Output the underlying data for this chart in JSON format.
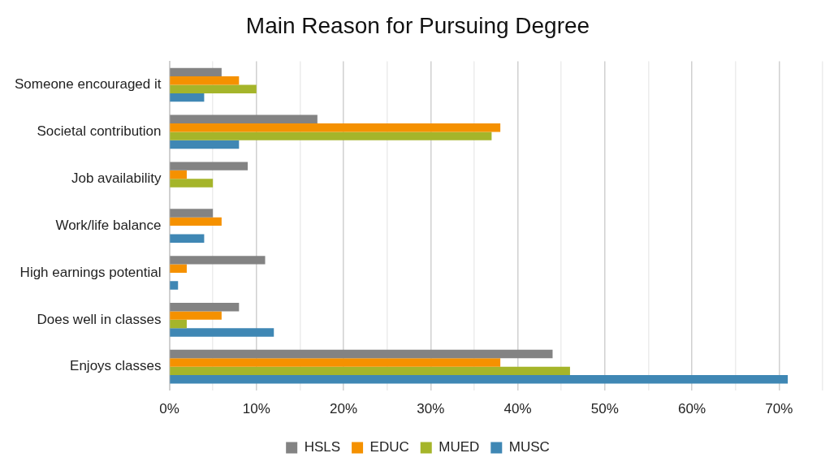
{
  "chart_data": {
    "type": "bar",
    "orientation": "horizontal",
    "title": "Main Reason for Pursuing Degree",
    "categories": [
      "Someone encouraged it",
      "Societal contribution",
      "Job availability",
      "Work/life balance",
      "High earnings potential",
      "Does well in classes",
      "Enjoys classes"
    ],
    "series": [
      {
        "name": "HSLS",
        "color": "#838383",
        "values": [
          6,
          17,
          9,
          5,
          11,
          8,
          44
        ]
      },
      {
        "name": "EDUC",
        "color": "#f59100",
        "values": [
          8,
          38,
          2,
          6,
          2,
          6,
          38
        ]
      },
      {
        "name": "MUED",
        "color": "#a5b52a",
        "values": [
          10,
          37,
          5,
          0,
          0,
          2,
          46
        ]
      },
      {
        "name": "MUSC",
        "color": "#3f87b4",
        "values": [
          4,
          8,
          0,
          4,
          1,
          12,
          71
        ]
      }
    ],
    "xlim": [
      0,
      75
    ],
    "xticks": [
      {
        "value": 0,
        "label": "0%"
      },
      {
        "value": 5,
        "label": null
      },
      {
        "value": 10,
        "label": "10%"
      },
      {
        "value": 15,
        "label": null
      },
      {
        "value": 20,
        "label": "20%"
      },
      {
        "value": 25,
        "label": null
      },
      {
        "value": 30,
        "label": "30%"
      },
      {
        "value": 35,
        "label": null
      },
      {
        "value": 40,
        "label": "40%"
      },
      {
        "value": 45,
        "label": null
      },
      {
        "value": 50,
        "label": "50%"
      },
      {
        "value": 55,
        "label": null
      },
      {
        "value": 60,
        "label": "60%"
      },
      {
        "value": 65,
        "label": null
      },
      {
        "value": 70,
        "label": "70%"
      },
      {
        "value": 75,
        "label": null
      }
    ],
    "grid": true,
    "legend": "bottom"
  }
}
